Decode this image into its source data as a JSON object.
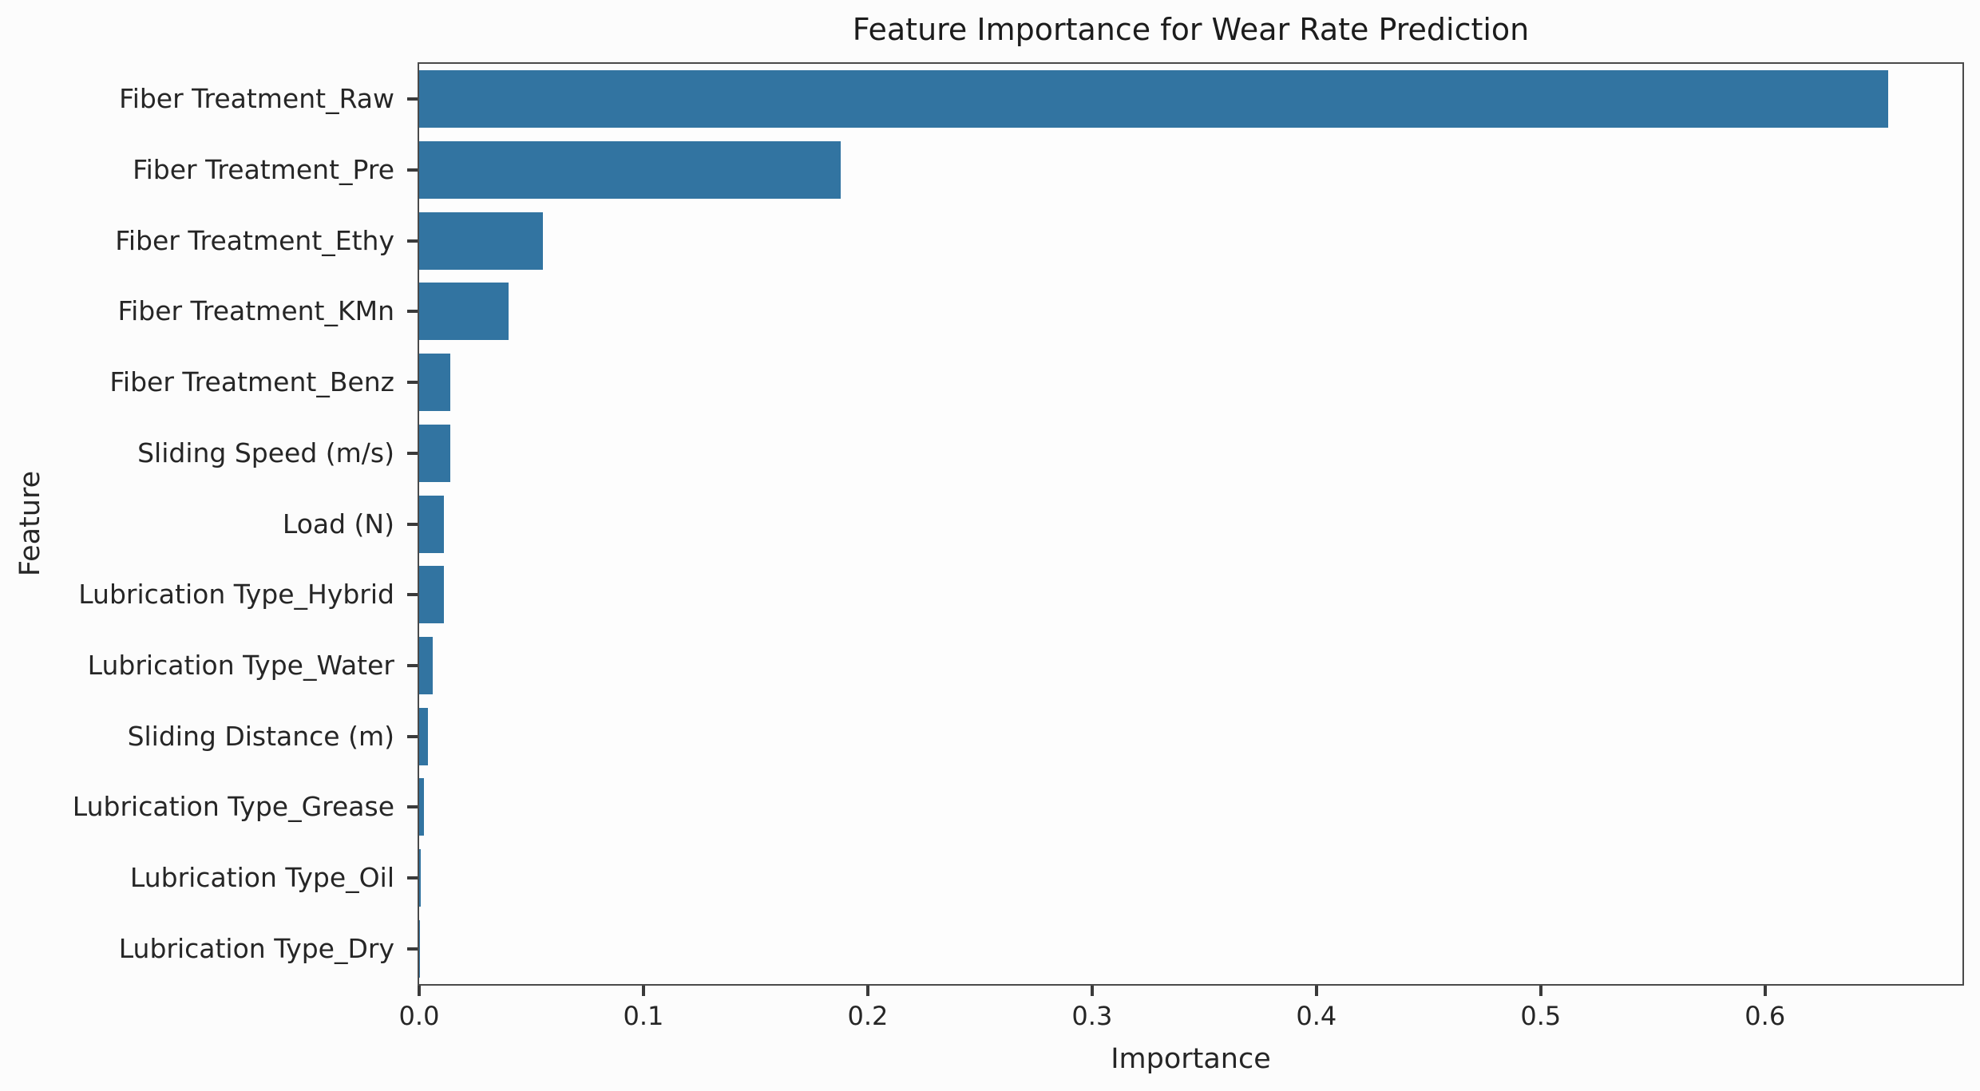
{
  "chart_data": {
    "type": "bar",
    "orientation": "horizontal",
    "title": "Feature Importance for Wear Rate Prediction",
    "xlabel": "Importance",
    "ylabel": "Feature",
    "categories": [
      "Fiber Treatment_Raw",
      "Fiber Treatment_Pre",
      "Fiber Treatment_Ethy",
      "Fiber Treatment_KMn",
      "Fiber Treatment_Benz",
      "Sliding Speed (m/s)",
      "Load (N)",
      "Lubrication Type_Hybrid",
      "Lubrication Type_Water",
      "Sliding Distance (m)",
      "Lubrication Type_Grease",
      "Lubrication Type_Oil",
      "Lubrication Type_Dry"
    ],
    "values": [
      0.655,
      0.188,
      0.055,
      0.04,
      0.014,
      0.014,
      0.011,
      0.011,
      0.006,
      0.004,
      0.002,
      0.0008,
      0.0003
    ],
    "xlim": [
      0.0,
      0.688
    ],
    "xticks": [
      0.0,
      0.1,
      0.2,
      0.3,
      0.4,
      0.5,
      0.6
    ],
    "xtick_labels": [
      "0.0",
      "0.1",
      "0.2",
      "0.3",
      "0.4",
      "0.5",
      "0.6"
    ],
    "bar_color": "#3274a1",
    "grid": false,
    "legend": null
  }
}
